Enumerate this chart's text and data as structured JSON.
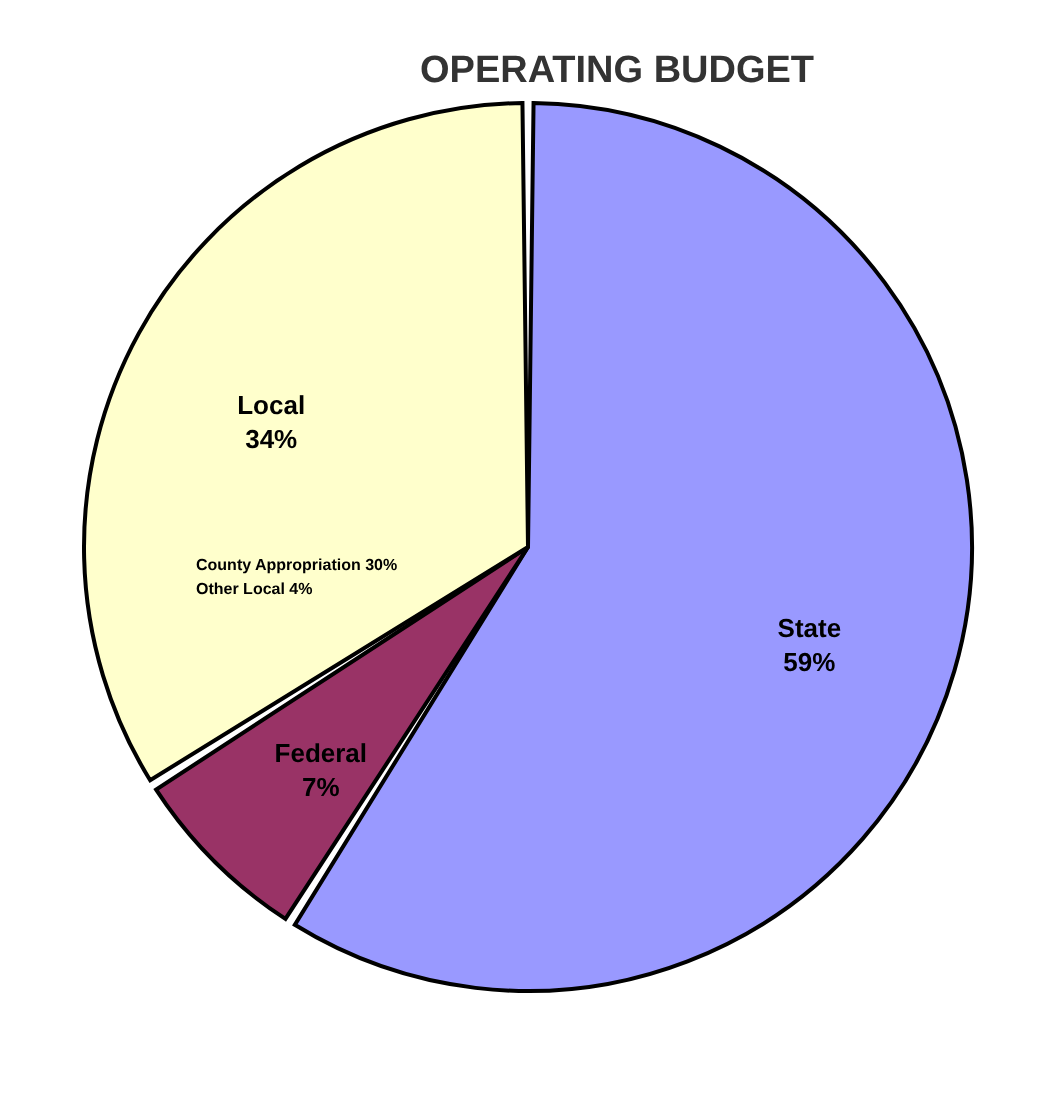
{
  "chart_data": {
    "type": "pie",
    "title": "OPERATING BUDGET",
    "categories": [
      "State",
      "Federal",
      "Local"
    ],
    "values": [
      59,
      7,
      34
    ],
    "colors": [
      "#9999ff",
      "#993366",
      "#ffffcc"
    ],
    "value_labels": [
      "59%",
      "7%",
      "34%"
    ],
    "annotations": [
      "County Appropriation 30%",
      "Other Local 4%"
    ],
    "legend": false
  }
}
